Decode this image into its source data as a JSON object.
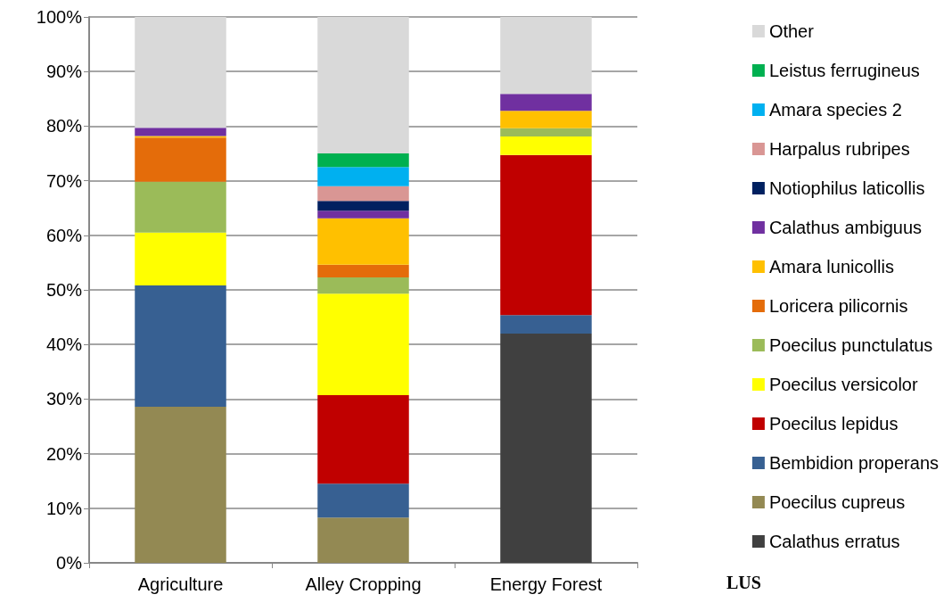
{
  "chart_data": {
    "type": "bar",
    "stacked": true,
    "xlabel": "LUS",
    "categories": [
      "Agriculture",
      "Alley Cropping",
      "Energy Forest"
    ],
    "series": [
      {
        "name": "Calathus erratus",
        "color": "#404040",
        "values": [
          0,
          0,
          42.0
        ]
      },
      {
        "name": "Poecilus cupreus",
        "color": "#938953",
        "values": [
          28.6,
          8.3,
          0
        ]
      },
      {
        "name": "Bembidion properans",
        "color": "#376092",
        "values": [
          22.2,
          6.2,
          3.4
        ]
      },
      {
        "name": "Poecilus lepidus",
        "color": "#c00000",
        "values": [
          0,
          16.2,
          29.3
        ]
      },
      {
        "name": "Poecilus versicolor",
        "color": "#ffff00",
        "values": [
          9.7,
          18.6,
          3.4
        ]
      },
      {
        "name": "Poecilus punctulatus",
        "color": "#9bbb59",
        "values": [
          9.3,
          3.0,
          1.5
        ]
      },
      {
        "name": "Loricera pilicornis",
        "color": "#e46c0a",
        "values": [
          8.1,
          2.3,
          0
        ]
      },
      {
        "name": "Amara lunicollis",
        "color": "#ffc000",
        "values": [
          0.3,
          8.5,
          3.2
        ]
      },
      {
        "name": "Calathus ambiguus",
        "color": "#7030a0",
        "values": [
          1.5,
          1.4,
          3.1
        ]
      },
      {
        "name": "Notiophilus laticollis",
        "color": "#002060",
        "values": [
          0,
          1.8,
          0
        ]
      },
      {
        "name": "Harpalus rubripes",
        "color": "#d99694",
        "values": [
          0,
          2.7,
          0
        ]
      },
      {
        "name": "Amara species 2",
        "color": "#00b0f0",
        "values": [
          0,
          3.5,
          0
        ]
      },
      {
        "name": "Leistus ferrugineus",
        "color": "#00b050",
        "values": [
          0,
          2.5,
          0
        ]
      },
      {
        "name": "Other",
        "color": "#d9d9d9",
        "values": [
          20.3,
          25.0,
          14.1
        ]
      }
    ],
    "ylim": [
      0,
      100
    ],
    "yticks": [
      {
        "value": 0,
        "label": "0%"
      },
      {
        "value": 10,
        "label": "10%"
      },
      {
        "value": 20,
        "label": "20%"
      },
      {
        "value": 30,
        "label": "30%"
      },
      {
        "value": 40,
        "label": "40%"
      },
      {
        "value": 50,
        "label": "50%"
      },
      {
        "value": 60,
        "label": "60%"
      },
      {
        "value": 70,
        "label": "70%"
      },
      {
        "value": 80,
        "label": "80%"
      },
      {
        "value": 90,
        "label": "90%"
      },
      {
        "value": 100,
        "label": "100%"
      }
    ],
    "grid": "y",
    "legend": "right"
  }
}
